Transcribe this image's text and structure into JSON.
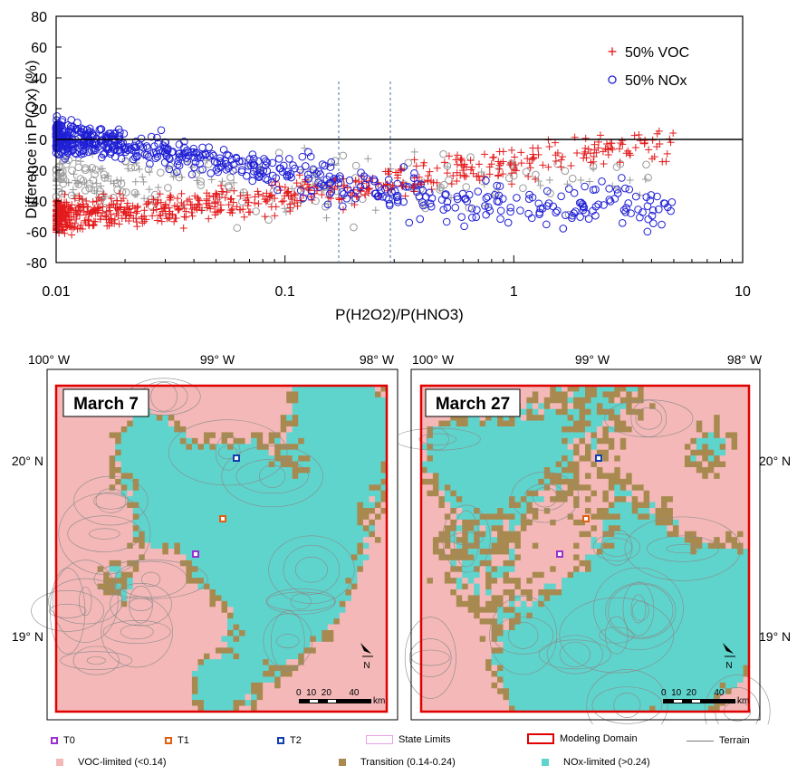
{
  "chart_data": [
    {
      "type": "scatter",
      "xlabel": "P(H2O2)/P(HNO3)",
      "ylabel": "Difference in P(Ox) (%)",
      "xscale": "log",
      "xlim": [
        0.01,
        10
      ],
      "ylim": [
        -80,
        80
      ],
      "xticks": [
        "0.01",
        "0.1",
        "1",
        "10"
      ],
      "yticks": [
        "80",
        "60",
        "40",
        "20",
        "0",
        "-20",
        "-40",
        "-60",
        "-80"
      ],
      "reference_lines": {
        "horizontal_y": 0,
        "vertical_x_dashed": [
          0.14,
          0.24
        ]
      },
      "legend_position": "top-right",
      "series": [
        {
          "name": "50% VOC",
          "marker": "plus",
          "color": "#e41a1c",
          "trend": [
            [
              0.01,
              -50
            ],
            [
              0.03,
              -45
            ],
            [
              0.1,
              -38
            ],
            [
              0.3,
              -28
            ],
            [
              1,
              -15
            ],
            [
              3,
              -5
            ]
          ]
        },
        {
          "name": "50% NOx",
          "marker": "circle",
          "color": "#1f1fd6",
          "trend": [
            [
              0.01,
              2
            ],
            [
              0.03,
              -8
            ],
            [
              0.1,
              -22
            ],
            [
              0.3,
              -35
            ],
            [
              1,
              -42
            ],
            [
              5,
              -45
            ]
          ]
        }
      ]
    },
    {
      "type": "map",
      "title": "March 7",
      "lon_labels": [
        "100° W",
        "99° W",
        "98° W"
      ],
      "lat_labels": [
        "20° N",
        "19° N"
      ],
      "scale_label": "0  10  20       40",
      "scale_unit": "km",
      "north_label": "N"
    },
    {
      "type": "map",
      "title": "March 27",
      "lon_labels": [
        "100° W",
        "99° W",
        "98° W"
      ],
      "lat_labels": [
        "20° N",
        "19° N"
      ],
      "scale_label": "0  10  20       40",
      "scale_unit": "km",
      "north_label": "N"
    }
  ],
  "colors": {
    "voc": "#f4b8b8",
    "transition": "#a88a50",
    "nox": "#5fd4cc",
    "domain": "#e00000",
    "t0": "#9b30d0",
    "t1": "#e06010",
    "t2": "#1040b0"
  },
  "legend": {
    "t0": "T0",
    "t1": "T1",
    "t2": "T2",
    "state": "State Limits",
    "domain": "Modeling Domain",
    "terrain": "Terrain",
    "voc": "VOC-limited (<0.14)",
    "transition": "Transition (0.14-0.24)",
    "nox": "NOx-limited (>0.24)"
  }
}
